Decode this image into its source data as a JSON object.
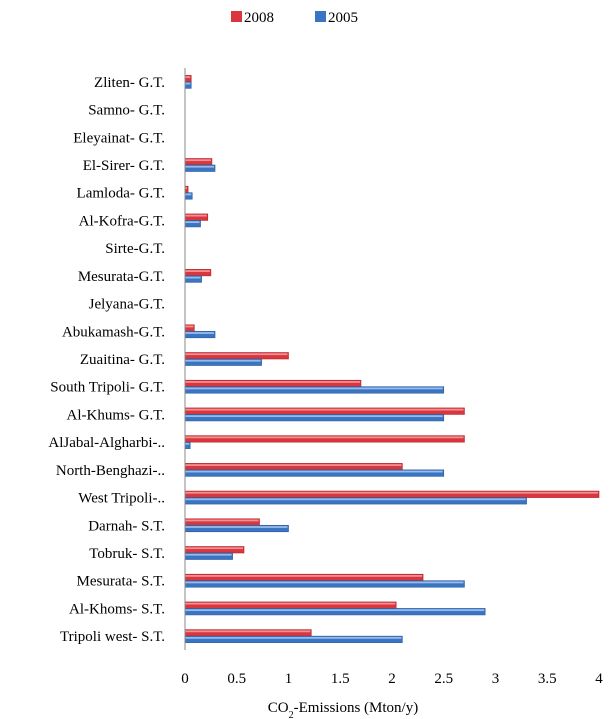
{
  "chart_data": {
    "type": "bar",
    "orientation": "horizontal",
    "categories": [
      "Zliten- G.T.",
      "Samno- G.T.",
      "Eleyainat- G.T.",
      "El-Sirer- G.T.",
      "Lamloda- G.T.",
      "Al-Kofra-G.T.",
      "Sirte-G.T.",
      "Mesurata-G.T.",
      "Jelyana-G.T.",
      "Abukamash-G.T.",
      "Zuaitina- G.T.",
      "South Tripoli- G.T.",
      "Al-Khums- G.T.",
      "AlJabal-Algharbi-..",
      "North-Benghazi-..",
      "West Tripoli-..",
      "Darnah- S.T.",
      "Tobruk- S.T.",
      "Mesurata- S.T.",
      "Al-Khoms- S.T.",
      "Tripoli west- S.T."
    ],
    "series": [
      {
        "name": "2008",
        "color": "#d9363e",
        "values": [
          0.06,
          0,
          0,
          0.26,
          0.03,
          0.22,
          0,
          0.25,
          0,
          0.09,
          1.0,
          1.7,
          2.7,
          2.7,
          2.1,
          4.0,
          0.72,
          0.57,
          2.3,
          2.04,
          1.22
        ]
      },
      {
        "name": "2005",
        "color": "#3a75c4",
        "values": [
          0.06,
          0,
          0,
          0.29,
          0.07,
          0.15,
          0,
          0.16,
          0,
          0.29,
          0.74,
          2.5,
          2.5,
          0.05,
          2.5,
          3.3,
          1.0,
          0.46,
          2.7,
          2.9,
          2.1
        ]
      }
    ],
    "xlim": [
      0,
      4
    ],
    "xticks": [
      "0",
      "0.5",
      "1",
      "1.5",
      "2",
      "2.5",
      "3",
      "3.5",
      "4"
    ],
    "xlabel": "CO2-Emissions (Mton/y)",
    "xlabel_parts": {
      "pre": "CO",
      "sub": "2",
      "post": "-Emissions (Mton/y)"
    },
    "legend_position": "top-center",
    "grid": false
  }
}
